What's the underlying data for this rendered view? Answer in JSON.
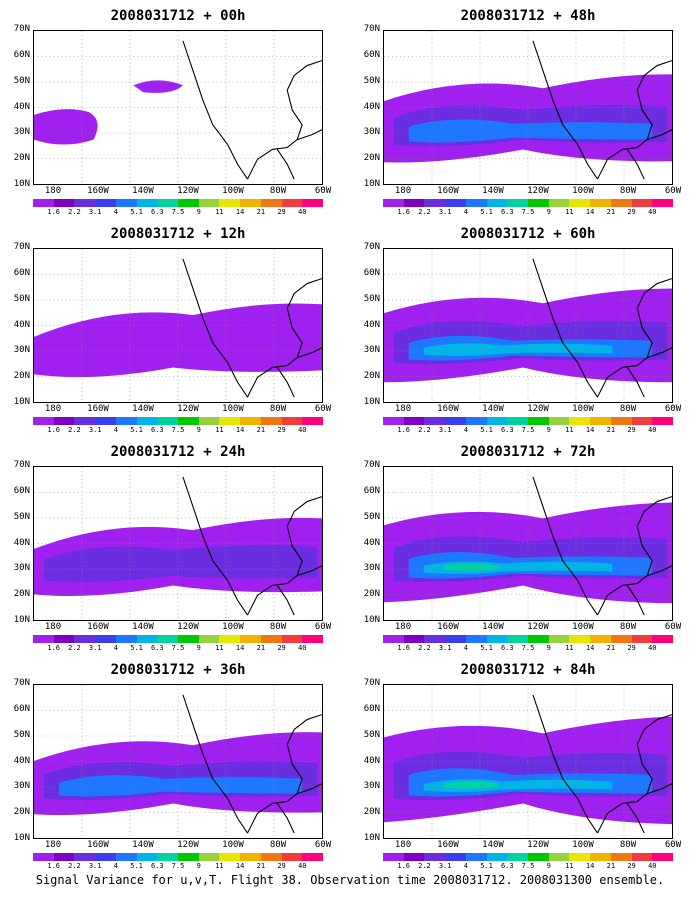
{
  "panels": [
    {
      "title": "2008031712 + 00h",
      "intensity": 0
    },
    {
      "title": "2008031712 + 48h",
      "intensity": 4
    },
    {
      "title": "2008031712 + 12h",
      "intensity": 1
    },
    {
      "title": "2008031712 + 60h",
      "intensity": 5
    },
    {
      "title": "2008031712 + 24h",
      "intensity": 2
    },
    {
      "title": "2008031712 + 72h",
      "intensity": 6
    },
    {
      "title": "2008031712 + 36h",
      "intensity": 3
    },
    {
      "title": "2008031712 + 84h",
      "intensity": 7
    }
  ],
  "lat_labels": [
    "70N",
    "60N",
    "50N",
    "40N",
    "30N",
    "20N",
    "10N"
  ],
  "lon_labels": [
    "180",
    "160W",
    "140W",
    "120W",
    "100W",
    "80W",
    "60W"
  ],
  "colorbar": {
    "labels": [
      "1.6",
      "2.2",
      "3.1",
      "4",
      "5.1",
      "6.3",
      "7.5",
      "9",
      "11",
      "14",
      "21",
      "29",
      "40"
    ],
    "colors": [
      "#a020f0",
      "#8000c0",
      "#6a2ee0",
      "#3c3cf0",
      "#1e78ff",
      "#00b4e6",
      "#00d2a0",
      "#00c800",
      "#96d23c",
      "#e6e600",
      "#f0b400",
      "#f07814",
      "#f03c3c",
      "#ff007f"
    ]
  },
  "footer": "Signal Variance for u,v,T. Flight 38. Observation time 2008031712. 2008031300 ensemble."
}
